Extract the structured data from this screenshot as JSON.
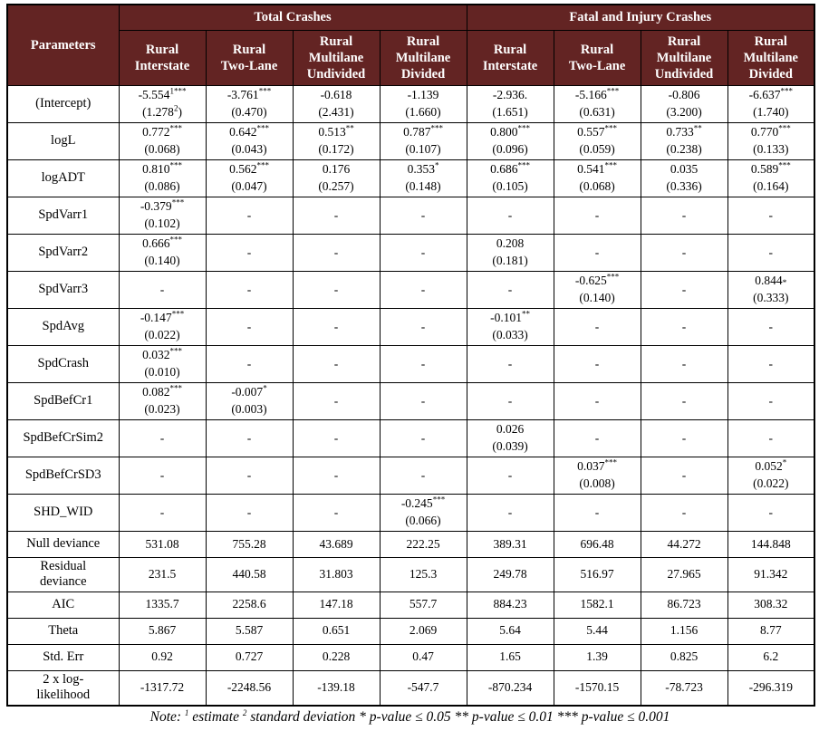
{
  "colors": {
    "header_bg": "#632423",
    "header_text": "#ffffff",
    "border": "#000000",
    "body_text": "#000000"
  },
  "table": {
    "corner_header": "Parameters",
    "group_headers": [
      "Total Crashes",
      "Fatal and Injury Crashes"
    ],
    "column_headers": [
      "Rural\nInterstate",
      "Rural\nTwo-Lane",
      "Rural\nMultilane\nUndivided",
      "Rural\nMultilane\nDivided",
      "Rural\nInterstate",
      "Rural\nTwo-Lane",
      "Rural\nMultilane\nUndivided",
      "Rural\nMultilane\nDivided"
    ],
    "parameter_rows": [
      {
        "label": "(Intercept)",
        "cells": [
          "-5.554^{1***}\n(1.278^{2})",
          "-3.761^{***}\n(0.470)",
          "-0.618\n(2.431)",
          "-1.139\n(1.660)",
          "-2.936.\n(1.651)",
          "-5.166^{***}\n(0.631)",
          "-0.806\n(3.200)",
          "-6.637^{***}\n(1.740)"
        ]
      },
      {
        "label": "logL",
        "cells": [
          "0.772^{***}\n(0.068)",
          "0.642^{***}\n(0.043)",
          "0.513^{**}\n(0.172)",
          "0.787^{***}\n(0.107)",
          "0.800^{***}\n(0.096)",
          "0.557^{***}\n(0.059)",
          "0.733^{**}\n(0.238)",
          "0.770^{***}\n(0.133)"
        ]
      },
      {
        "label": "logADT",
        "cells": [
          "0.810^{***}\n(0.086)",
          "0.562^{***}\n(0.047)",
          "0.176\n(0.257)",
          "0.353^{*}\n(0.148)",
          "0.686^{***}\n(0.105)",
          "0.541^{***}\n(0.068)",
          "0.035\n(0.336)",
          "0.589^{***}\n(0.164)"
        ]
      },
      {
        "label": "SpdVarr1",
        "cells": [
          "-0.379^{***}\n(0.102)",
          "-",
          "-",
          "-",
          "-",
          "-",
          "-",
          "-"
        ]
      },
      {
        "label": "SpdVarr2",
        "cells": [
          "0.666^{***}\n(0.140)",
          "-",
          "-",
          "-",
          "0.208\n(0.181)",
          "-",
          "-",
          "-"
        ]
      },
      {
        "label": "SpdVarr3",
        "cells": [
          "-",
          "-",
          "-",
          "-",
          "-",
          "-0.625^{***}\n(0.140)",
          "-",
          "0.844_{*}\n(0.333)"
        ]
      },
      {
        "label": "SpdAvg",
        "cells": [
          "-0.147^{***}\n(0.022)",
          "-",
          "-",
          "-",
          "-0.101^{**}\n(0.033)",
          "-",
          "-",
          "-"
        ]
      },
      {
        "label": "SpdCrash",
        "cells": [
          "0.032^{***}\n(0.010)",
          "-",
          "-",
          "-",
          "-",
          "-",
          "-",
          "-"
        ]
      },
      {
        "label": "SpdBefCr1",
        "cells": [
          "0.082^{***}\n(0.023)",
          "-0.007^{*}\n(0.003)",
          "-",
          "-",
          "-",
          "-",
          "-",
          "-"
        ]
      },
      {
        "label": "SpdBefCrSim2",
        "cells": [
          "-",
          "-",
          "-",
          "-",
          "0.026\n(0.039)",
          "-",
          "-",
          "-"
        ]
      },
      {
        "label": "SpdBefCrSD3",
        "cells": [
          "-",
          "-",
          "-",
          "-",
          "-",
          "0.037^{***}\n(0.008)",
          "-",
          "0.052^{*}\n(0.022)"
        ]
      },
      {
        "label": "SHD_WID",
        "cells": [
          "-",
          "-",
          "-",
          "-0.245^{***}\n(0.066)",
          "-",
          "-",
          "-",
          "-"
        ]
      }
    ],
    "stat_rows": [
      {
        "label": "Null deviance",
        "cells": [
          "531.08",
          "755.28",
          "43.689",
          "222.25",
          "389.31",
          "696.48",
          "44.272",
          "144.848"
        ]
      },
      {
        "label": "Residual\ndeviance",
        "cells": [
          "231.5",
          "440.58",
          "31.803",
          "125.3",
          "249.78",
          "516.97",
          "27.965",
          "91.342"
        ]
      },
      {
        "label": "AIC",
        "cells": [
          "1335.7",
          "2258.6",
          "147.18",
          "557.7",
          "884.23",
          "1582.1",
          "86.723",
          "308.32"
        ]
      },
      {
        "label": "Theta",
        "cells": [
          "5.867",
          "5.587",
          "0.651",
          "2.069",
          "5.64",
          "5.44",
          "1.156",
          "8.77"
        ]
      },
      {
        "label": "Std. Err",
        "cells": [
          "0.92",
          "0.727",
          "0.228",
          "0.47",
          "1.65",
          "1.39",
          "0.825",
          "6.2"
        ]
      },
      {
        "label": "2 x log-\nlikelihood",
        "cells": [
          "-1317.72",
          "-2248.56",
          "-139.18",
          "-547.7",
          "-870.234",
          "-1570.15",
          "-78.723",
          "-296.319"
        ]
      }
    ]
  },
  "page": {
    "note": "Note: ^{1} estimate ^{2} standard deviation * p-value ≤ 0.05 ** p-value ≤ 0.01 *** p-value ≤ 0.001"
  }
}
